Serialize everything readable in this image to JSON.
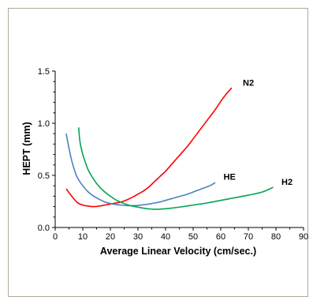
{
  "chart_data": {
    "type": "line",
    "title": "",
    "xlabel": "Average Linear Velocity (cm/sec.)",
    "ylabel": "HEPT (mm)",
    "xlim": [
      0,
      90
    ],
    "ylim": [
      0.0,
      1.5
    ],
    "x_ticks": [
      "0",
      "10",
      "20",
      "30",
      "40",
      "50",
      "60",
      "70",
      "80",
      "90"
    ],
    "y_ticks": [
      "0.0",
      "0.5",
      "1.0",
      "1.5"
    ],
    "y_tick_values": [
      0.0,
      0.5,
      1.0,
      1.5
    ],
    "grid": false,
    "series": [
      {
        "name": "N2",
        "color": "#ff0000",
        "points": [
          [
            4,
            0.37
          ],
          [
            6,
            0.3
          ],
          [
            8,
            0.24
          ],
          [
            10,
            0.215
          ],
          [
            12,
            0.205
          ],
          [
            14,
            0.2
          ],
          [
            16,
            0.205
          ],
          [
            18,
            0.215
          ],
          [
            20,
            0.225
          ],
          [
            22,
            0.235
          ],
          [
            24,
            0.245
          ],
          [
            26,
            0.265
          ],
          [
            28,
            0.29
          ],
          [
            30,
            0.32
          ],
          [
            32,
            0.35
          ],
          [
            34,
            0.39
          ],
          [
            36,
            0.44
          ],
          [
            38,
            0.49
          ],
          [
            40,
            0.54
          ],
          [
            42,
            0.6
          ],
          [
            44,
            0.66
          ],
          [
            46,
            0.72
          ],
          [
            48,
            0.78
          ],
          [
            50,
            0.85
          ],
          [
            52,
            0.92
          ],
          [
            54,
            0.99
          ],
          [
            56,
            1.06
          ],
          [
            58,
            1.13
          ],
          [
            60,
            1.21
          ],
          [
            62,
            1.28
          ],
          [
            64,
            1.34
          ]
        ]
      },
      {
        "name": "HE",
        "color": "#4f81bd",
        "points": [
          [
            4,
            0.9
          ],
          [
            5,
            0.76
          ],
          [
            6,
            0.64
          ],
          [
            7,
            0.55
          ],
          [
            8,
            0.48
          ],
          [
            10,
            0.4
          ],
          [
            12,
            0.34
          ],
          [
            14,
            0.3
          ],
          [
            16,
            0.27
          ],
          [
            18,
            0.245
          ],
          [
            20,
            0.23
          ],
          [
            22,
            0.22
          ],
          [
            24,
            0.215
          ],
          [
            26,
            0.21
          ],
          [
            28,
            0.21
          ],
          [
            30,
            0.212
          ],
          [
            32,
            0.218
          ],
          [
            34,
            0.225
          ],
          [
            36,
            0.235
          ],
          [
            38,
            0.245
          ],
          [
            40,
            0.26
          ],
          [
            42,
            0.275
          ],
          [
            44,
            0.29
          ],
          [
            46,
            0.305
          ],
          [
            48,
            0.32
          ],
          [
            50,
            0.34
          ],
          [
            52,
            0.36
          ],
          [
            54,
            0.38
          ],
          [
            56,
            0.4
          ],
          [
            58,
            0.43
          ]
        ]
      },
      {
        "name": "H2",
        "color": "#00a650",
        "points": [
          [
            8.5,
            0.96
          ],
          [
            9,
            0.82
          ],
          [
            10,
            0.7
          ],
          [
            11,
            0.62
          ],
          [
            12,
            0.55
          ],
          [
            14,
            0.46
          ],
          [
            16,
            0.39
          ],
          [
            18,
            0.34
          ],
          [
            20,
            0.3
          ],
          [
            22,
            0.265
          ],
          [
            24,
            0.24
          ],
          [
            26,
            0.22
          ],
          [
            28,
            0.205
          ],
          [
            30,
            0.195
          ],
          [
            32,
            0.185
          ],
          [
            34,
            0.178
          ],
          [
            36,
            0.175
          ],
          [
            38,
            0.176
          ],
          [
            40,
            0.18
          ],
          [
            42,
            0.185
          ],
          [
            45,
            0.195
          ],
          [
            50,
            0.215
          ],
          [
            55,
            0.235
          ],
          [
            60,
            0.26
          ],
          [
            65,
            0.285
          ],
          [
            70,
            0.31
          ],
          [
            75,
            0.34
          ],
          [
            79,
            0.385
          ]
        ]
      }
    ],
    "labels": [
      {
        "text": "N2",
        "x": 68,
        "y": 1.36
      },
      {
        "text": "HE",
        "x": 61,
        "y": 0.46
      },
      {
        "text": "H2",
        "x": 82,
        "y": 0.41
      }
    ]
  }
}
